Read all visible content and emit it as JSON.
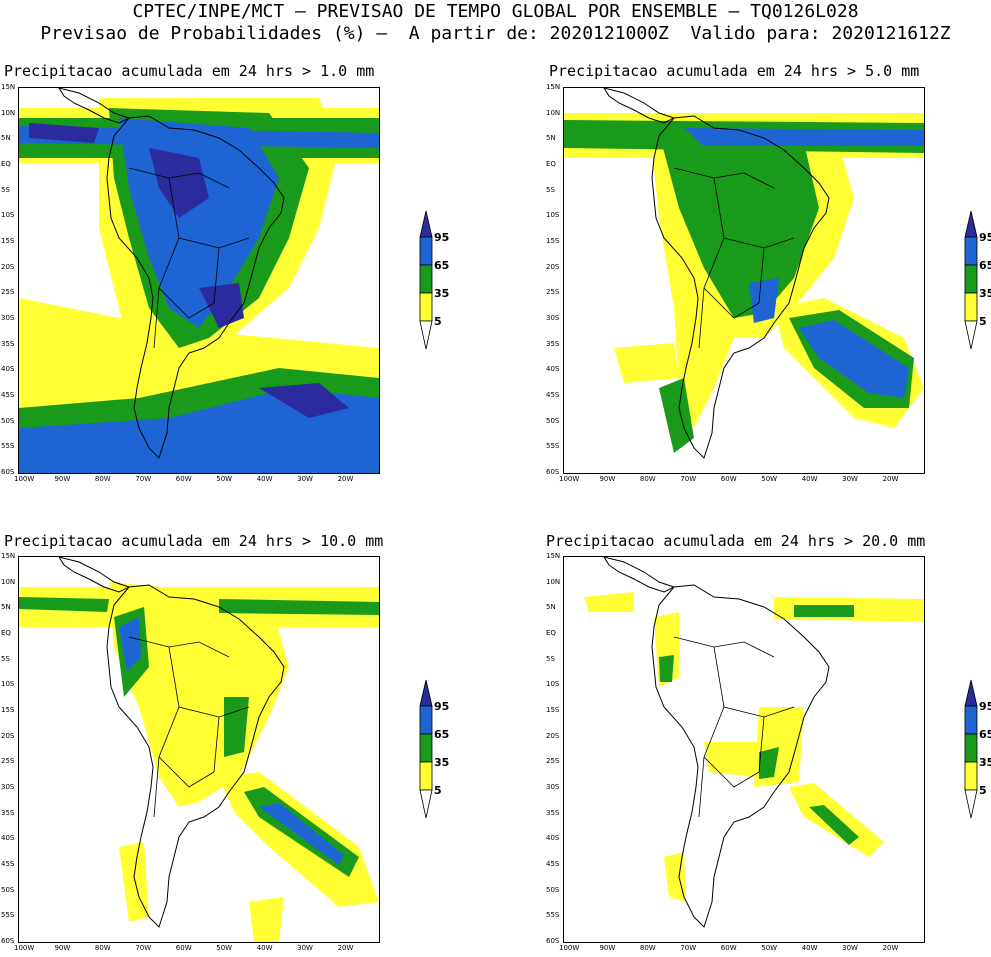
{
  "header": {
    "line1": "CPTEC/INPE/MCT – PREVISAO DE TEMPO GLOBAL POR ENSEMBLE – TQ0126L028",
    "line2": "Previsao de Probabilidades (%) –  A partir de: 2020121000Z  Valido para: 2020121612Z"
  },
  "colors": {
    "c5": "#ffff33",
    "c35": "#1a9a1a",
    "c65": "#1e64d2",
    "c95": "#2b2b9e",
    "coast": "#000000"
  },
  "axis": {
    "lat_labels": [
      "15N",
      "10N",
      "5N",
      "EQ",
      "5S",
      "10S",
      "15S",
      "20S",
      "25S",
      "30S",
      "35S",
      "40S",
      "45S",
      "50S",
      "55S",
      "60S"
    ],
    "lon_labels": [
      "100W",
      "90W",
      "80W",
      "70W",
      "60W",
      "50W",
      "40W",
      "30W",
      "20W"
    ]
  },
  "legend": {
    "levels": [
      "95",
      "65",
      "35",
      "5"
    ]
  },
  "panels": [
    {
      "title": "Precipitacao acumulada em 24 hrs > 1.0 mm"
    },
    {
      "title": "Precipitacao acumulada em 24 hrs > 5.0 mm"
    },
    {
      "title": "Precipitacao acumulada em 24 hrs > 10.0 mm"
    },
    {
      "title": "Precipitacao acumulada em 24 hrs > 20.0 mm"
    }
  ]
}
